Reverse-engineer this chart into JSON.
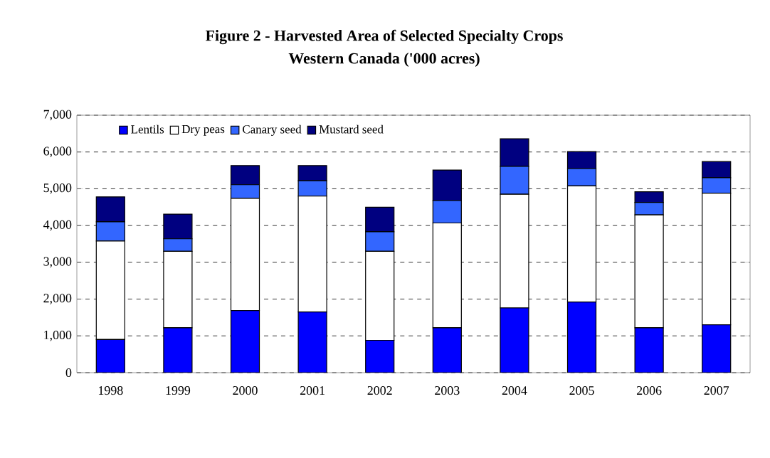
{
  "chart_data": {
    "type": "bar",
    "stacked": true,
    "title": "Figure 2 - Harvested Area of Selected Specialty Crops",
    "subtitle": "Western Canada ('000 acres)",
    "categories": [
      "1998",
      "1999",
      "2000",
      "2001",
      "2002",
      "2003",
      "2004",
      "2005",
      "2006",
      "2007"
    ],
    "series": [
      {
        "name": "Lentils",
        "color": "#0000ff",
        "values": [
          900,
          1220,
          1690,
          1650,
          880,
          1220,
          1760,
          1920,
          1220,
          1300
        ]
      },
      {
        "name": "Dry peas",
        "color": "#ffffff",
        "values": [
          2680,
          2080,
          3050,
          3150,
          2420,
          2850,
          3090,
          3160,
          3070,
          3580
        ]
      },
      {
        "name": "Canary seed",
        "color": "#3366ff",
        "values": [
          520,
          340,
          370,
          420,
          530,
          610,
          760,
          470,
          340,
          420
        ]
      },
      {
        "name": "Mustard seed",
        "color": "#000080",
        "values": [
          680,
          670,
          520,
          410,
          670,
          830,
          750,
          460,
          290,
          440
        ]
      }
    ],
    "ylim": [
      0,
      7000
    ],
    "yticks": [
      0,
      {
        "value": 1000,
        "label": "1,000"
      },
      {
        "value": 2000,
        "label": "2,000"
      },
      {
        "value": 3000,
        "label": "3,000"
      },
      {
        "value": 4000,
        "label": "4,000"
      },
      {
        "value": 5000,
        "label": "5,000"
      },
      {
        "value": 6000,
        "label": "6,000"
      },
      {
        "value": 7000,
        "label": "7,000"
      }
    ],
    "grid": "y",
    "legend": "top left"
  }
}
